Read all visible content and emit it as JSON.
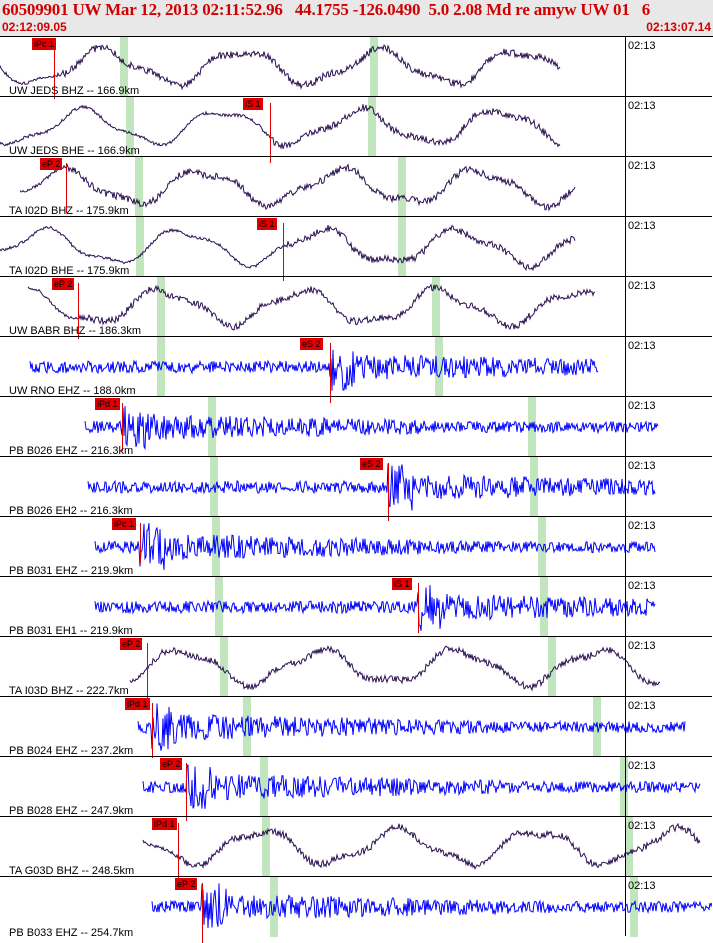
{
  "header": {
    "title": "60509901 UW Mar 12, 2013 02:11:52.96   44.1755 -126.0490  5.0 2.08 Md re amyw UW 01   6",
    "start_time": "02:12:09.05",
    "end_time": "02:13:07.14"
  },
  "colors": {
    "broadband_trace": "#2a1050",
    "short_period_trace": "#0000ff",
    "pick": "#e00000",
    "window": "#b6e0b2",
    "header_text": "#d10000"
  },
  "traces": [
    {
      "label": "UW JEDS BHZ -- 166.9km",
      "tick": "02:13",
      "pick": "iPc 1",
      "kind": "broadband"
    },
    {
      "label": "UW JEDS BHE -- 166.9km",
      "tick": "02:13",
      "pick": "iS 1",
      "kind": "broadband"
    },
    {
      "label": "TA I02D BHZ -- 175.9km",
      "tick": "02:13",
      "pick": "eP 2",
      "kind": "broadband"
    },
    {
      "label": "TA I02D BHE -- 175.9km",
      "tick": "02:13",
      "pick": "iS 1",
      "kind": "broadband"
    },
    {
      "label": "UW BABR BHZ -- 186.3km",
      "tick": "02:13",
      "pick": "eP 2",
      "kind": "broadband"
    },
    {
      "label": "UW RNO EHZ -- 188.0km",
      "tick": "02:13",
      "pick": "eS 2",
      "kind": "short"
    },
    {
      "label": "PB B026 EHZ -- 216.3km",
      "tick": "02:13",
      "pick": "iPd 1",
      "kind": "short"
    },
    {
      "label": "PB B026 EH2 -- 216.3km",
      "tick": "02:13",
      "pick": "eS 2",
      "kind": "short"
    },
    {
      "label": "PB B031 EHZ -- 219.9km",
      "tick": "02:13",
      "pick": "iPc 1",
      "kind": "short"
    },
    {
      "label": "PB B031 EH1 -- 219.9km",
      "tick": "02:13",
      "pick": "iS 1",
      "kind": "short"
    },
    {
      "label": "TA I03D BHZ -- 222.7km",
      "tick": "02:13",
      "pick": "eP 2",
      "kind": "broadband"
    },
    {
      "label": "PB B024 EHZ -- 237.2km",
      "tick": "02:13",
      "pick": "iPd 1",
      "kind": "short"
    },
    {
      "label": "PB B028 EHZ -- 247.9km",
      "tick": "02:13",
      "pick": "eP 2",
      "kind": "short"
    },
    {
      "label": "TA G03D BHZ -- 248.5km",
      "tick": "02:13",
      "pick": "iPd 1",
      "kind": "broadband"
    },
    {
      "label": "PB B033 EHZ -- 254.7km",
      "tick": "02:13",
      "pick": "eP 2",
      "kind": "short"
    }
  ]
}
